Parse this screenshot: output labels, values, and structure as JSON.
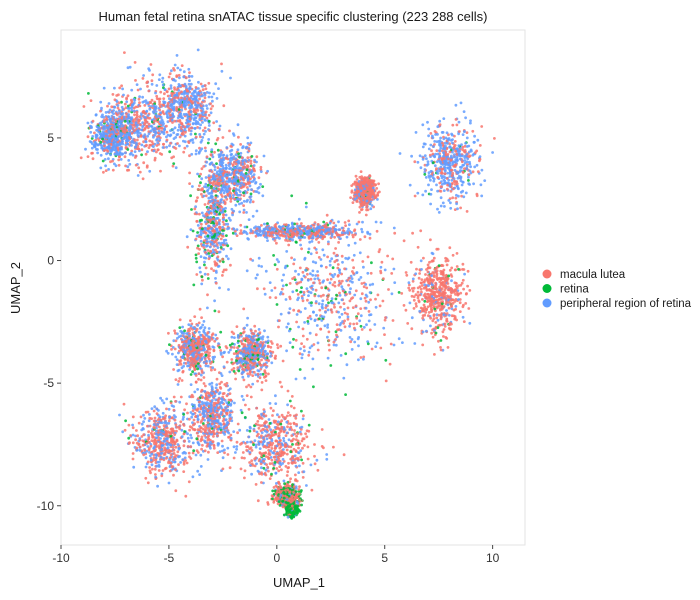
{
  "chart_data": {
    "type": "scatter",
    "title": "Human fetal retina snATAC tissue specific clustering (223 288 cells)",
    "xlabel": "UMAP_1",
    "ylabel": "UMAP_2",
    "xlim": [
      -10,
      11.5
    ],
    "ylim": [
      -11.6,
      9.4
    ],
    "x_ticks": [
      -10,
      -5,
      0,
      5,
      10
    ],
    "y_ticks": [
      -10,
      -5,
      0,
      5
    ],
    "grid": false,
    "legend_position": "right",
    "series": [
      {
        "name": "macula lutea",
        "color": "#F8766D"
      },
      {
        "name": "retina",
        "color": "#00BA38"
      },
      {
        "name": "peripheral region of retina",
        "color": "#619CFF"
      }
    ],
    "clusters": [
      {
        "center": [
          -6.2,
          5.6
        ],
        "spread": [
          1.6,
          1.5
        ],
        "mix": [
          0.55,
          0.03,
          0.42
        ]
      },
      {
        "center": [
          -4.2,
          6.3
        ],
        "spread": [
          1.2,
          1.3
        ],
        "mix": [
          0.35,
          0.02,
          0.63
        ]
      },
      {
        "center": [
          -7.6,
          5.1
        ],
        "spread": [
          0.9,
          0.9
        ],
        "mix": [
          0.25,
          0.05,
          0.7
        ]
      },
      {
        "center": [
          8.0,
          4.0
        ],
        "spread": [
          1.3,
          1.4
        ],
        "mix": [
          0.35,
          0.02,
          0.63
        ]
      },
      {
        "center": [
          4.1,
          2.8
        ],
        "spread": [
          0.4,
          0.5
        ],
        "mix": [
          0.8,
          0.02,
          0.18
        ]
      },
      {
        "center": [
          7.5,
          -1.4
        ],
        "spread": [
          1.0,
          1.4
        ],
        "mix": [
          0.85,
          0.02,
          0.13
        ]
      },
      {
        "center": [
          -3.8,
          -3.6
        ],
        "spread": [
          0.8,
          0.9
        ],
        "mix": [
          0.55,
          0.05,
          0.4
        ]
      },
      {
        "center": [
          -5.3,
          -7.3
        ],
        "spread": [
          1.3,
          1.3
        ],
        "mix": [
          0.6,
          0.02,
          0.38
        ]
      },
      {
        "center": [
          -3.0,
          -6.4
        ],
        "spread": [
          0.9,
          1.3
        ],
        "mix": [
          0.5,
          0.03,
          0.47
        ]
      },
      {
        "center": [
          0.0,
          -7.5
        ],
        "spread": [
          1.5,
          1.4
        ],
        "mix": [
          0.65,
          0.04,
          0.31
        ]
      },
      {
        "center": [
          0.5,
          -9.6
        ],
        "spread": [
          0.5,
          0.4
        ],
        "mix": [
          0.55,
          0.35,
          0.1
        ]
      },
      {
        "center": [
          0.7,
          -10.2
        ],
        "spread": [
          0.2,
          0.2
        ],
        "mix": [
          0.1,
          0.85,
          0.05
        ]
      },
      {
        "center": [
          -3.0,
          1.5
        ],
        "spread": [
          0.7,
          2.2
        ],
        "mix": [
          0.4,
          0.15,
          0.45
        ]
      },
      {
        "center": [
          -2.0,
          3.5
        ],
        "spread": [
          1.0,
          1.2
        ],
        "mix": [
          0.4,
          0.05,
          0.55
        ]
      },
      {
        "center": [
          -1.2,
          -3.8
        ],
        "spread": [
          0.9,
          0.8
        ],
        "mix": [
          0.5,
          0.1,
          0.4
        ]
      },
      {
        "center": [
          1.0,
          1.2
        ],
        "spread": [
          2.5,
          0.3
        ],
        "mix": [
          0.45,
          0.05,
          0.5
        ]
      },
      {
        "center": [
          2.5,
          -1.5
        ],
        "spread": [
          3.0,
          2.5
        ],
        "mix": [
          0.45,
          0.1,
          0.45
        ]
      }
    ]
  }
}
